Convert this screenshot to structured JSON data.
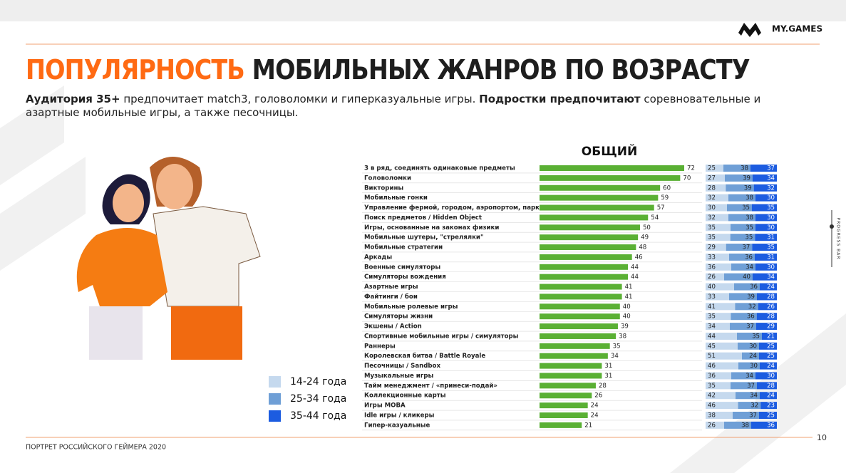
{
  "header": {
    "title_accent": "ПОПУЛЯРНОСТЬ",
    "title_rest": "МОБИЛЬНЫХ ЖАНРОВ ПО ВОЗРАСТУ",
    "subtitle": [
      {
        "text": "Аудитория 35+",
        "bold": true
      },
      {
        "text": " предпочитает match3, головоломки и гиперказуальные игры. ",
        "bold": false
      },
      {
        "text": "Подростки предпочитают",
        "bold": true
      },
      {
        "text": " соревновательные и азартные мобильные игры, а также песочницы.",
        "bold": false
      }
    ],
    "logo": "MY.GAMES"
  },
  "side_label": "PROGRESS BAR",
  "footer": {
    "text": "ПОРТРЕТ РОССИЙСКОГО ГЕЙМЕРА 2020",
    "page": "10"
  },
  "chart_data": [
    {
      "type": "bar",
      "title": "ОБЩИЙ",
      "color": "#5ab034",
      "categories": [
        "3 в ряд, соединять одинаковые предметы",
        "Головоломки",
        "Викторины",
        "Мобильные гонки",
        "Управление фермой, городом, аэропортом, парком",
        "Поиск предметов / Hidden Object",
        "Игры, основанные на законах физики",
        "Мобильные шутеры, \"стрелялки\"",
        "Мобильные стратегии",
        "Аркады",
        "Военные симуляторы",
        "Симуляторы вождения",
        "Азартные игры",
        "Файтинги / бои",
        "Мобильные ролевые игры",
        "Симуляторы жизни",
        "Экшены / Action",
        "Спортивные мобильные игры / симуляторы",
        "Раннеры",
        "Королевская битва / Battle Royale",
        "Песочницы / Sandbox",
        "Музыкальные игры",
        "Тайм менеджмент / «принеси-подай»",
        "Коллекционные карты",
        "Игры MOBA",
        "Idle игры / кликеры",
        "Гипер-казуальные"
      ],
      "values": [
        72,
        70,
        60,
        59,
        57,
        54,
        50,
        49,
        48,
        46,
        44,
        44,
        41,
        41,
        40,
        40,
        39,
        38,
        35,
        34,
        31,
        31,
        28,
        26,
        24,
        24,
        21
      ]
    },
    {
      "type": "stacked_bar",
      "series": [
        {
          "name": "14-24 года",
          "color": "#c5d9ee",
          "values": [
            25,
            27,
            28,
            32,
            30,
            32,
            35,
            35,
            29,
            33,
            36,
            26,
            40,
            33,
            41,
            35,
            34,
            44,
            45,
            51,
            46,
            36,
            35,
            42,
            46,
            38,
            26
          ]
        },
        {
          "name": "25-34 года",
          "color": "#6f9fd6",
          "values": [
            38,
            39,
            39,
            38,
            35,
            38,
            35,
            35,
            37,
            36,
            34,
            40,
            36,
            39,
            32,
            36,
            37,
            35,
            30,
            24,
            30,
            34,
            37,
            34,
            32,
            37,
            38
          ]
        },
        {
          "name": "35-44 года",
          "color": "#1c5ce0",
          "values": [
            37,
            34,
            32,
            30,
            35,
            30,
            30,
            31,
            35,
            31,
            30,
            34,
            24,
            28,
            26,
            28,
            29,
            21,
            25,
            25,
            24,
            30,
            28,
            24,
            23,
            25,
            36
          ]
        }
      ]
    }
  ]
}
